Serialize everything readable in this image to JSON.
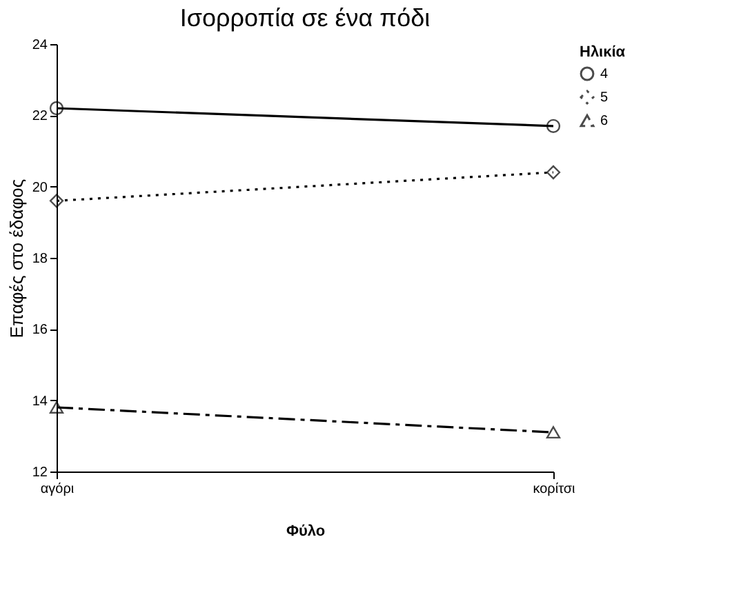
{
  "chart_data": {
    "type": "line",
    "title": "Ισορροπία σε ένα πόδι",
    "xlabel": "Φύλο",
    "ylabel": "Επαφές στο έδαφος",
    "legend_title": "Ηλικία",
    "categories": [
      "αγόρι",
      "κορίτσι"
    ],
    "series": [
      {
        "name": "4",
        "color": "#000000",
        "values": [
          22.2,
          21.7
        ],
        "marker": "circle",
        "line_style": "solid"
      },
      {
        "name": "5",
        "color": "#000000",
        "values": [
          19.6,
          20.4
        ],
        "marker": "diamond",
        "line_style": "dotted"
      },
      {
        "name": "6",
        "color": "#000000",
        "values": [
          13.8,
          13.1
        ],
        "marker": "triangle",
        "line_style": "dashed"
      }
    ],
    "ylim": [
      12,
      24
    ],
    "yticks": [
      12,
      14,
      16,
      18,
      20,
      22,
      24
    ],
    "grid": false,
    "legend": "right"
  }
}
